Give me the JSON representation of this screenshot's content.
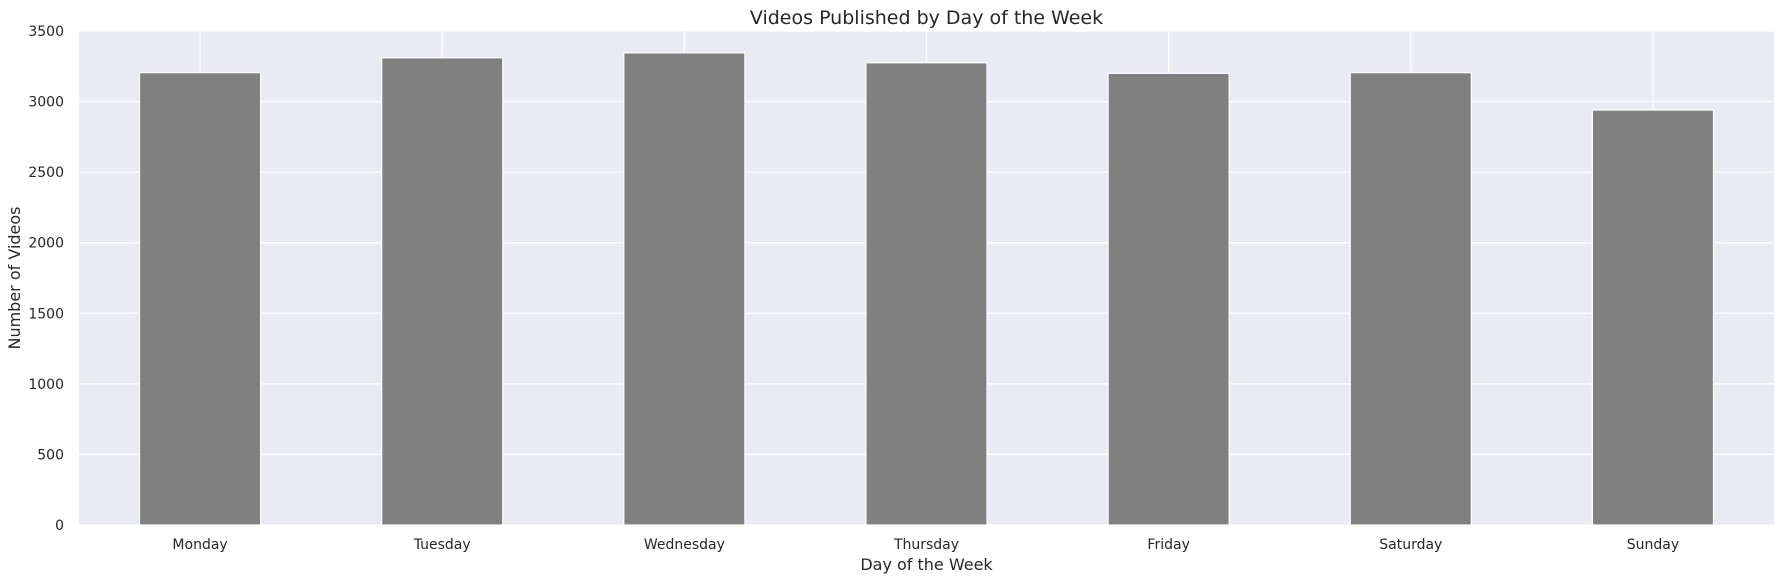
{
  "chart_data": {
    "type": "bar",
    "title": "Videos Published by Day of the Week",
    "xlabel": "Day of the Week",
    "ylabel": "Number of Videos",
    "categories": [
      "Monday",
      "Tuesday",
      "Wednesday",
      "Thursday",
      "Friday",
      "Saturday",
      "Sunday"
    ],
    "values": [
      3205,
      3310,
      3345,
      3275,
      3200,
      3205,
      2940
    ],
    "ylim": [
      0,
      3500
    ],
    "yticks": [
      0,
      500,
      1000,
      1500,
      2000,
      2500,
      3000,
      3500
    ],
    "grid": true,
    "legend": "none",
    "colors": {
      "bar": "#808080",
      "bar_edge": "#ffffff",
      "plot_background": "#eaeaf2",
      "grid": "#ffffff",
      "text": "#262626"
    }
  }
}
